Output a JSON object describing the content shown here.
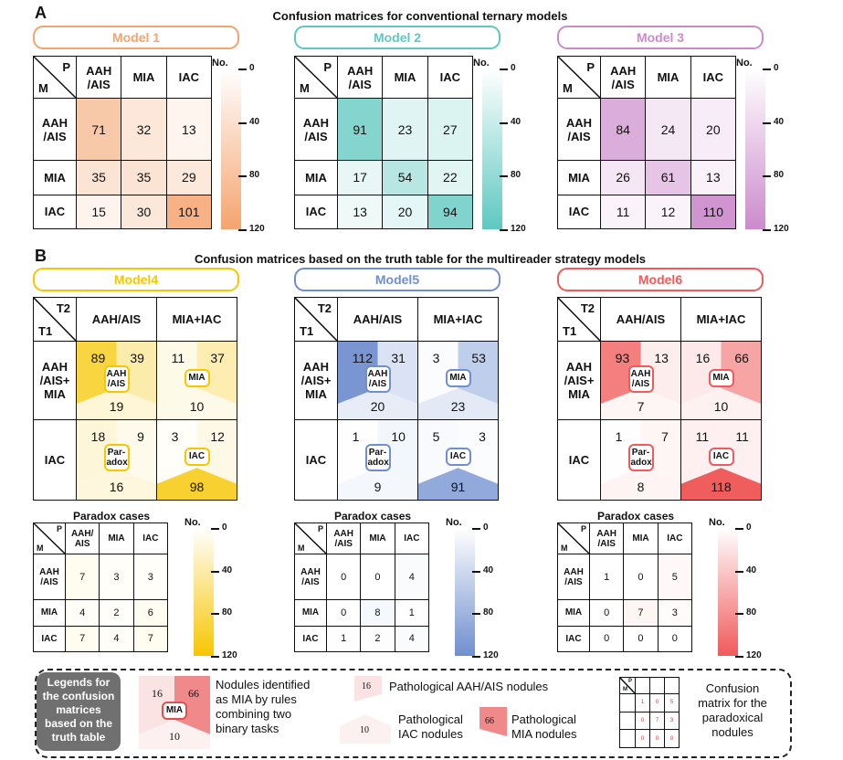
{
  "panel_a": {
    "letter": "A",
    "title": "Confusion matrices for conventional ternary models",
    "models": [
      {
        "name": "Model 1",
        "color": "#f4a46e",
        "col_headers": [
          "AAH\n/AIS",
          "MIA",
          "IAC"
        ],
        "row_headers": [
          "AAH\n/AIS",
          "MIA",
          "IAC"
        ],
        "values": [
          [
            71,
            32,
            13
          ],
          [
            35,
            35,
            29
          ],
          [
            15,
            30,
            101
          ]
        ]
      },
      {
        "name": "Model 2",
        "color": "#5ec8c0",
        "col_headers": [
          "AAH\n/AIS",
          "MIA",
          "IAC"
        ],
        "row_headers": [
          "AAH\n/AIS",
          "MIA",
          "IAC"
        ],
        "values": [
          [
            91,
            23,
            27
          ],
          [
            17,
            54,
            22
          ],
          [
            13,
            20,
            94
          ]
        ]
      },
      {
        "name": "Model 3",
        "color": "#cc8acc",
        "col_headers": [
          "AAH\n/AIS",
          "MIA",
          "IAC"
        ],
        "row_headers": [
          "AAH\n/AIS",
          "MIA",
          "IAC"
        ],
        "values": [
          [
            84,
            24,
            20
          ],
          [
            26,
            61,
            13
          ],
          [
            11,
            12,
            110
          ]
        ]
      }
    ],
    "corner": {
      "p": "P",
      "m": "M"
    },
    "colorbar": {
      "label": "No.",
      "ticks": [
        "0",
        "40",
        "80",
        "120"
      ]
    }
  },
  "panel_b": {
    "letter": "B",
    "title": "Confusion matrices based on the truth table for the multireader strategy models",
    "corner": {
      "p": "T2",
      "m": "T1"
    },
    "col_headers": [
      "AAH/AIS",
      "MIA+IAC"
    ],
    "row_headers": [
      "AAH\n/AIS+\nMIA",
      "IAC"
    ],
    "badges": {
      "aah": "AAH\n/AIS",
      "mia": "MIA",
      "paradox": "Par-\nadox",
      "iac": "IAC"
    },
    "models": [
      {
        "name": "Model4",
        "color": "#f7c600",
        "cells": [
          [
            89,
            39,
            19
          ],
          [
            11,
            37,
            10
          ],
          [
            18,
            9,
            16
          ],
          [
            3,
            12,
            98
          ]
        ]
      },
      {
        "name": "Model5",
        "color": "#6f8fcf",
        "cells": [
          [
            112,
            31,
            20
          ],
          [
            3,
            53,
            23
          ],
          [
            1,
            10,
            9
          ],
          [
            5,
            3,
            91
          ]
        ]
      },
      {
        "name": "Model6",
        "color": "#f05a5a",
        "cells": [
          [
            93,
            13,
            7
          ],
          [
            16,
            66,
            10
          ],
          [
            1,
            7,
            8
          ],
          [
            11,
            11,
            118
          ]
        ]
      }
    ],
    "paradox": {
      "title": "Paradox cases",
      "corner": {
        "p": "P",
        "m": "M"
      },
      "col_headers": [
        "AAH/\nAIS",
        "MIA",
        "IAC"
      ],
      "row_headers": [
        "AAH\n/AIS",
        "MIA",
        "IAC"
      ],
      "col_headers_alt": [
        "AAH\n/AIS",
        "MIA",
        "IAC"
      ],
      "values": [
        [
          [
            7,
            3,
            3
          ],
          [
            4,
            2,
            6
          ],
          [
            7,
            4,
            7
          ]
        ],
        [
          [
            0,
            0,
            4
          ],
          [
            0,
            8,
            1
          ],
          [
            1,
            2,
            4
          ]
        ],
        [
          [
            1,
            0,
            5
          ],
          [
            0,
            7,
            3
          ],
          [
            0,
            0,
            0
          ]
        ]
      ]
    },
    "colorbar": {
      "label": "No.",
      "ticks": [
        "0",
        "40",
        "80",
        "120"
      ]
    }
  },
  "legend": {
    "title": "Legends for\nthe confusion\nmatrices\nbased on the\ntruth table",
    "example_nums": {
      "aah": "16",
      "mia": "66",
      "iac": "10",
      "badge": "MIA"
    },
    "items": [
      "Nodules identified\nas MIA by rules\ncombining two\nbinary tasks",
      "Pathological AAH/AIS nodules",
      "Pathological\nIAC nodules",
      "Pathological\nMIA nodules",
      "Confusion\nmatrix for the\nparadoxical\nnodules"
    ],
    "swatch_nums": {
      "aah": "16",
      "iac": "10",
      "mia": "66"
    },
    "mini": {
      "p": "P",
      "m": "M",
      "values": [
        [
          "1",
          "0",
          "5"
        ],
        [
          "0",
          "7",
          "3"
        ],
        [
          "0",
          "0",
          "0"
        ]
      ]
    }
  }
}
